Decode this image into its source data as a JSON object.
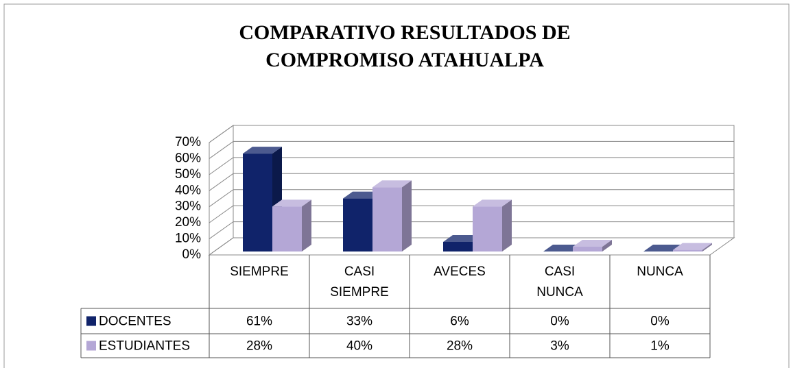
{
  "chart_data": {
    "type": "bar3d",
    "title": "COMPARATIVO RESULTADOS DE COMPROMISO ATAHUALPA",
    "categories": [
      "SIEMPRE",
      "CASI SIEMPRE",
      "AVECES",
      "CASI NUNCA",
      "NUNCA"
    ],
    "series": [
      {
        "name": "DOCENTES",
        "color": "#10236a",
        "values": [
          61,
          33,
          6,
          0,
          0
        ],
        "value_labels": [
          "61%",
          "33%",
          "6%",
          "0%",
          "0%"
        ]
      },
      {
        "name": "ESTUDIANTES",
        "color": "#b4a7d6",
        "values": [
          28,
          40,
          28,
          3,
          1
        ],
        "value_labels": [
          "28%",
          "40%",
          "28%",
          "3%",
          "1%"
        ]
      }
    ],
    "ylim": [
      0,
      70
    ],
    "yticks": [
      {
        "value": 0,
        "label": "0%"
      },
      {
        "value": 10,
        "label": "10%"
      },
      {
        "value": 20,
        "label": "20%"
      },
      {
        "value": 30,
        "label": "30%"
      },
      {
        "value": 40,
        "label": "40%"
      },
      {
        "value": 50,
        "label": "50%"
      },
      {
        "value": 60,
        "label": "60%"
      },
      {
        "value": 70,
        "label": "70%"
      }
    ],
    "grid": true
  }
}
